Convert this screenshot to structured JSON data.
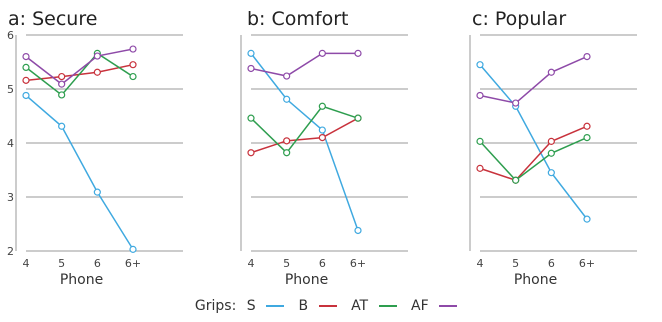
{
  "colors": {
    "S": "#3fa9e0",
    "B": "#c8323c",
    "AT": "#2e9e4f",
    "AF": "#8e4aa8",
    "grid": "#9a9a9a"
  },
  "legend": {
    "label": "Grips:",
    "items": [
      "S",
      "B",
      "AT",
      "AF"
    ]
  },
  "chart_data": [
    {
      "type": "line",
      "title": "a: Secure",
      "xlabel": "Phone",
      "ylabel": "",
      "categories": [
        "4",
        "5",
        "6",
        "6+"
      ],
      "ylim": [
        2,
        6
      ],
      "yticks": [
        "2",
        "3",
        "4",
        "5",
        "6"
      ],
      "grid": true,
      "series": [
        {
          "name": "S",
          "values": [
            4.88,
            4.31,
            3.09,
            2.03
          ]
        },
        {
          "name": "B",
          "values": [
            5.16,
            5.23,
            5.31,
            5.45
          ]
        },
        {
          "name": "AT",
          "values": [
            5.4,
            4.89,
            5.66,
            5.23
          ]
        },
        {
          "name": "AF",
          "values": [
            5.6,
            5.09,
            5.61,
            5.74
          ]
        }
      ]
    },
    {
      "type": "line",
      "title": "b: Comfort",
      "xlabel": "Phone",
      "ylabel": "",
      "categories": [
        "4",
        "5",
        "6",
        "6+"
      ],
      "ylim": [
        2,
        6
      ],
      "yticks": [
        "2",
        "3",
        "4",
        "5",
        "6"
      ],
      "grid": true,
      "series": [
        {
          "name": "S",
          "values": [
            5.66,
            4.81,
            4.24,
            2.38
          ]
        },
        {
          "name": "B",
          "values": [
            3.82,
            4.04,
            4.1,
            4.46
          ]
        },
        {
          "name": "AT",
          "values": [
            4.46,
            3.82,
            4.68,
            4.46
          ]
        },
        {
          "name": "AF",
          "values": [
            5.38,
            5.24,
            5.66,
            5.66
          ]
        }
      ]
    },
    {
      "type": "line",
      "title": "c: Popular",
      "xlabel": "Phone",
      "ylabel": "",
      "categories": [
        "4",
        "5",
        "6",
        "6+"
      ],
      "ylim": [
        2,
        6
      ],
      "yticks": [
        "2",
        "3",
        "4",
        "5",
        "6"
      ],
      "grid": true,
      "series": [
        {
          "name": "S",
          "values": [
            5.45,
            4.68,
            3.45,
            2.59
          ]
        },
        {
          "name": "B",
          "values": [
            3.53,
            3.31,
            4.03,
            4.31
          ]
        },
        {
          "name": "AT",
          "values": [
            4.03,
            3.31,
            3.81,
            4.1
          ]
        },
        {
          "name": "AF",
          "values": [
            4.88,
            4.74,
            5.31,
            5.6
          ]
        }
      ]
    }
  ]
}
